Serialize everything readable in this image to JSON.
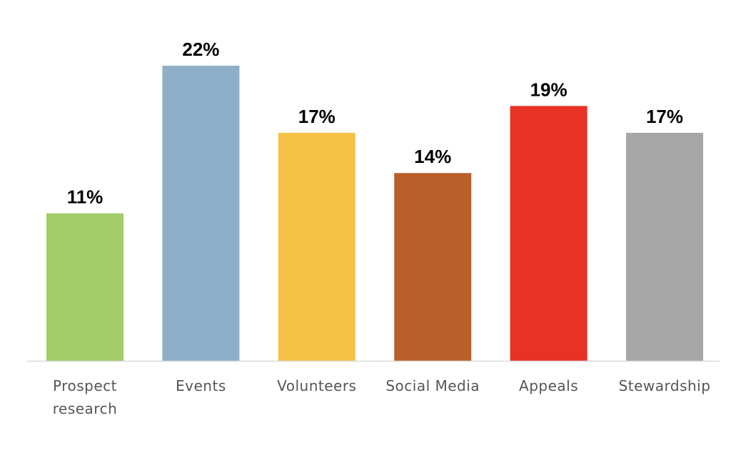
{
  "chart_data": {
    "type": "bar",
    "categories": [
      [
        "Prospect",
        "research"
      ],
      [
        "Events"
      ],
      [
        "Volunteers"
      ],
      [
        "Social Media"
      ],
      [
        "Appeals"
      ],
      [
        "Stewardship"
      ]
    ],
    "values": [
      11,
      22,
      17,
      14,
      19,
      17
    ],
    "value_labels": [
      "11%",
      "22%",
      "17%",
      "14%",
      "19%",
      "17%"
    ],
    "colors": [
      "#a2cc68",
      "#8fafc8",
      "#f4c144",
      "#b95f2a",
      "#e73224",
      "#a6a6a6"
    ],
    "baseline_color": "#d9d9d9",
    "title": "",
    "xlabel": "",
    "ylabel": "",
    "ylim": [
      0,
      22
    ],
    "grid": false,
    "legend": "none"
  }
}
